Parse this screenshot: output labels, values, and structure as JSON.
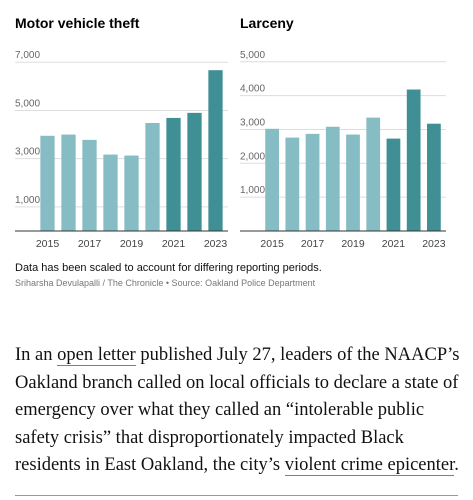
{
  "chart_data": [
    {
      "type": "bar",
      "title": "Motor vehicle theft",
      "categories": [
        "2015",
        null,
        "2017",
        null,
        "2019",
        null,
        "2021",
        null,
        "2023"
      ],
      "values": [
        3950,
        4000,
        3780,
        3170,
        3130,
        4480,
        4690,
        4900,
        6670
      ],
      "colors": [
        "#86bcc4",
        "#86bcc4",
        "#86bcc4",
        "#86bcc4",
        "#86bcc4",
        "#86bcc4",
        "#3f8f94",
        "#3f8f94",
        "#3f8f94"
      ],
      "ylim": [
        0,
        7300
      ],
      "yticks": [
        {
          "value": 1000,
          "label": "1,000"
        },
        {
          "value": 3000,
          "label": "3,000"
        },
        {
          "value": 5000,
          "label": "5,000"
        },
        {
          "value": 7000,
          "label": "7,000"
        }
      ],
      "grid": true
    },
    {
      "type": "bar",
      "title": "Larceny",
      "categories": [
        "2015",
        null,
        "2017",
        null,
        "2019",
        null,
        "2021",
        null,
        "2023"
      ],
      "values": [
        3020,
        2760,
        2870,
        3080,
        2850,
        3350,
        2730,
        4180,
        3170
      ],
      "colors": [
        "#86bcc4",
        "#86bcc4",
        "#86bcc4",
        "#86bcc4",
        "#86bcc4",
        "#86bcc4",
        "#3f8f94",
        "#3f8f94",
        "#3f8f94"
      ],
      "ylim": [
        0,
        5200
      ],
      "yticks": [
        {
          "value": 1000,
          "label": "1,000"
        },
        {
          "value": 2000,
          "label": "2,000"
        },
        {
          "value": 3000,
          "label": "3,000"
        },
        {
          "value": 4000,
          "label": "4,000"
        },
        {
          "value": 5000,
          "label": "5,000"
        }
      ],
      "grid": true
    }
  ],
  "note": "Data has been scaled to account for differing reporting periods.",
  "source": "Sriharsha Devulapalli / The Chronicle • Source: Oakland Police Department",
  "paragraph": [
    "In an ",
    "open letter",
    " published July 27, leaders of the NAACP’s Oakland branch called on local officials to declare a state of emergency over what they called an “intolerable public safety crisis” that disproportionately impacted Black residents in East Oakland, the city’s ",
    "violent crime epicenter",
    "."
  ]
}
